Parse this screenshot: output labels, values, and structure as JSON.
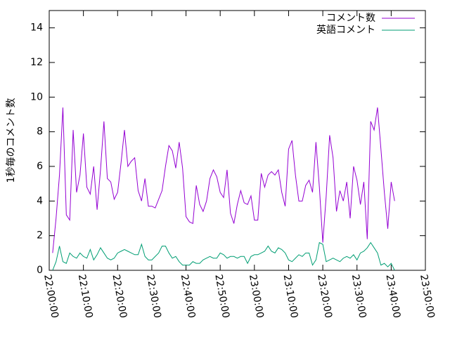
{
  "chart_data": {
    "type": "line",
    "ylabel": "1秒毎のコメント数",
    "x": [
      "22:01:00",
      "22:02:00",
      "22:03:00",
      "22:04:00",
      "22:05:00",
      "22:06:00",
      "22:07:00",
      "22:08:00",
      "22:09:00",
      "22:10:00",
      "22:11:00",
      "22:12:00",
      "22:13:00",
      "22:14:00",
      "22:15:00",
      "22:16:00",
      "22:17:00",
      "22:18:00",
      "22:19:00",
      "22:20:00",
      "22:21:00",
      "22:22:00",
      "22:23:00",
      "22:24:00",
      "22:25:00",
      "22:26:00",
      "22:27:00",
      "22:28:00",
      "22:29:00",
      "22:30:00",
      "22:31:00",
      "22:32:00",
      "22:33:00",
      "22:34:00",
      "22:35:00",
      "22:36:00",
      "22:37:00",
      "22:38:00",
      "22:39:00",
      "22:40:00",
      "22:41:00",
      "22:42:00",
      "22:43:00",
      "22:44:00",
      "22:45:00",
      "22:46:00",
      "22:47:00",
      "22:48:00",
      "22:49:00",
      "22:50:00",
      "22:51:00",
      "22:52:00",
      "22:53:00",
      "22:54:00",
      "22:55:00",
      "22:56:00",
      "22:57:00",
      "22:58:00",
      "22:59:00",
      "23:00:00",
      "23:01:00",
      "23:02:00",
      "23:03:00",
      "23:04:00",
      "23:05:00",
      "23:06:00",
      "23:07:00",
      "23:08:00",
      "23:09:00",
      "23:10:00",
      "23:11:00",
      "23:12:00",
      "23:13:00",
      "23:14:00",
      "23:15:00",
      "23:16:00",
      "23:17:00",
      "23:18:00",
      "23:19:00",
      "23:20:00",
      "23:21:00",
      "23:22:00",
      "23:23:00",
      "23:24:00",
      "23:25:00",
      "23:26:00",
      "23:27:00",
      "23:28:00",
      "23:29:00",
      "23:30:00",
      "23:31:00",
      "23:32:00",
      "23:33:00",
      "23:34:00",
      "23:35:00",
      "23:36:00",
      "23:37:00",
      "23:38:00",
      "23:39:00",
      "23:40:00",
      "23:41:00"
    ],
    "series": [
      {
        "name": "コメント数",
        "color": "#9400d3",
        "values": [
          1.0,
          3.0,
          5.5,
          9.4,
          3.2,
          2.9,
          8.1,
          4.5,
          5.5,
          7.9,
          4.8,
          4.4,
          6.0,
          3.5,
          5.8,
          8.6,
          5.3,
          5.1,
          4.1,
          4.5,
          6.2,
          8.1,
          6.0,
          6.3,
          6.5,
          4.6,
          4.0,
          5.3,
          3.7,
          3.7,
          3.6,
          4.1,
          4.6,
          6.0,
          7.2,
          6.9,
          5.9,
          7.4,
          5.9,
          3.1,
          2.8,
          2.7,
          4.9,
          3.8,
          3.4,
          4.0,
          5.3,
          5.8,
          5.4,
          4.5,
          4.2,
          5.8,
          3.3,
          2.7,
          3.8,
          4.6,
          3.9,
          3.8,
          4.3,
          2.9,
          2.9,
          5.6,
          4.8,
          5.5,
          5.7,
          5.5,
          5.8,
          4.5,
          3.7,
          7.0,
          7.5,
          5.5,
          4.0,
          4.0,
          4.9,
          5.2,
          4.5,
          7.4,
          4.8,
          1.6,
          4.3,
          7.8,
          6.5,
          3.4,
          4.6,
          4.0,
          5.1,
          3.0,
          6.0,
          5.2,
          3.8,
          5.1,
          1.8,
          8.6,
          8.1,
          9.4,
          7.0,
          4.5,
          2.4,
          5.1,
          4.0
        ]
      },
      {
        "name": "英語コメント",
        "color": "#009e73",
        "values": [
          0,
          0.5,
          1.4,
          0.5,
          0.4,
          1.0,
          0.8,
          0.7,
          1.0,
          0.8,
          0.7,
          1.2,
          0.6,
          0.9,
          1.3,
          1.0,
          0.7,
          0.6,
          0.7,
          1.0,
          1.1,
          1.2,
          1.1,
          1.0,
          0.9,
          0.9,
          1.5,
          0.8,
          0.6,
          0.6,
          0.8,
          1.0,
          1.4,
          1.4,
          1.0,
          0.7,
          0.8,
          0.5,
          0.3,
          0.3,
          0.3,
          0.5,
          0.4,
          0.4,
          0.6,
          0.7,
          0.8,
          0.7,
          0.7,
          1.0,
          0.9,
          0.7,
          0.8,
          0.8,
          0.7,
          0.8,
          0.8,
          0.4,
          0.8,
          0.9,
          0.9,
          1.0,
          1.1,
          1.4,
          1.1,
          1.0,
          1.3,
          1.2,
          1.0,
          0.6,
          0.5,
          0.7,
          0.9,
          0.8,
          1.0,
          1.0,
          0.3,
          0.6,
          1.6,
          1.5,
          0.5,
          0.6,
          0.7,
          0.6,
          0.5,
          0.7,
          0.8,
          0.7,
          0.9,
          0.6,
          1.0,
          1.1,
          1.3,
          1.6,
          1.3,
          1.0,
          0.3,
          0.4,
          0.2,
          0.4,
          0.0
        ]
      }
    ],
    "xlim": [
      "22:00:00",
      "23:50:00"
    ],
    "xticks": [
      "22:00:00",
      "22:10:00",
      "22:20:00",
      "22:30:00",
      "22:40:00",
      "22:50:00",
      "23:00:00",
      "23:10:00",
      "23:20:00",
      "23:30:00",
      "23:40:00",
      "23:50:00"
    ],
    "ylim": [
      0,
      15
    ],
    "yticks": [
      0,
      2,
      4,
      6,
      8,
      10,
      12,
      14
    ],
    "grid": false,
    "legend": "top-right"
  }
}
